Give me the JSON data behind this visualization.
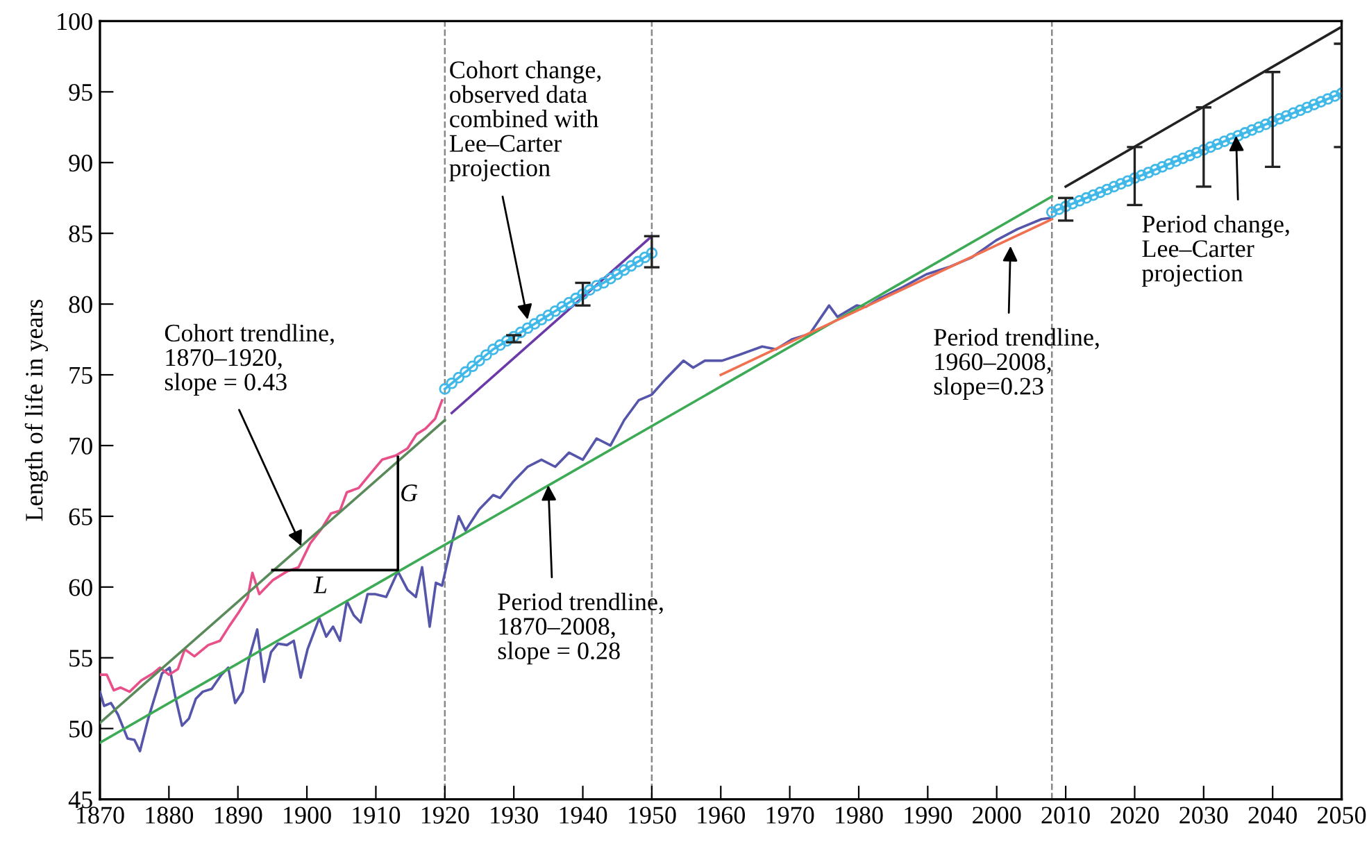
{
  "chart_data": {
    "type": "line",
    "ylabel": "Length of life in years",
    "xlim": [
      1870,
      2050
    ],
    "xticks": [
      1870,
      1880,
      1890,
      1900,
      1910,
      1920,
      1930,
      1940,
      1950,
      1960,
      1970,
      1980,
      1990,
      2000,
      2010,
      2020,
      2030,
      2040,
      2050
    ],
    "ylim": [
      45,
      100
    ],
    "yticks": [
      45,
      50,
      55,
      60,
      65,
      70,
      75,
      80,
      85,
      90,
      95,
      100
    ],
    "grid": false,
    "series": [
      {
        "color": "#5555aa",
        "x": [
          1870,
          1870.6,
          1871.6,
          1872.6,
          1874,
          1875,
          1875.8,
          1877,
          1879,
          1880.1,
          1880.9,
          1881.9,
          1882.9,
          1883.9,
          1884.9,
          1886.2,
          1887.6,
          1888.6,
          1889.6,
          1890.7,
          1891.7,
          1892.8,
          1893.8,
          1894.8,
          1895.8,
          1897.1,
          1898.1,
          1899.1,
          1900.1,
          1901.8,
          1902.8,
          1903.8,
          1904.8,
          1905.8,
          1906.8,
          1907.8,
          1908.8,
          1909.9,
          1911.5,
          1913.2,
          1914.6,
          1915.8,
          1916.7,
          1917.8,
          1918.7,
          1919.6,
          1921,
          1922,
          1923,
          1925,
          1927,
          1928,
          1930,
          1932,
          1934,
          1936,
          1938,
          1940,
          1942,
          1944,
          1946,
          1948.1,
          1950,
          1952,
          1954.6,
          1956,
          1957.7,
          1960.2,
          1962.6,
          1966,
          1968,
          1970.3,
          1972.9,
          1975.7,
          1976.9,
          1979.7,
          1981,
          1983,
          1986.4,
          1989.8,
          1993,
          1996.4,
          1999.9,
          2003,
          2006.5,
          2008
        ],
        "values": [
          52.6,
          51.6,
          51.8,
          51.0,
          49.3,
          49.2,
          48.4,
          50.7,
          53.9,
          54.3,
          52.3,
          50.2,
          50.7,
          52.1,
          52.6,
          52.8,
          53.8,
          54.3,
          51.8,
          52.6,
          55.1,
          57.0,
          53.3,
          55.4,
          56.0,
          55.9,
          56.2,
          53.6,
          55.6,
          57.8,
          56.5,
          57.2,
          56.2,
          59.0,
          58.0,
          57.5,
          59.5,
          59.5,
          59.3,
          61.1,
          59.8,
          59.3,
          61.4,
          57.2,
          60.3,
          60.1,
          63.1,
          65.0,
          64.0,
          65.5,
          66.5,
          66.3,
          67.5,
          68.5,
          69.0,
          68.5,
          69.5,
          69.0,
          70.5,
          70.0,
          71.8,
          73.2,
          73.6,
          74.7,
          76.0,
          75.5,
          76.0,
          76.0,
          76.4,
          77.0,
          76.8,
          77.5,
          77.9,
          79.9,
          79.1,
          79.9,
          79.8,
          80.4,
          81.2,
          82.1,
          82.6,
          83.3,
          84.5,
          85.3,
          86.0,
          86.1
        ]
      },
      {
        "color": "#e8508a",
        "x": [
          1870,
          1871,
          1872,
          1873,
          1874.3,
          1876,
          1877.7,
          1878.7,
          1880,
          1881.3,
          1882.3,
          1883.7,
          1885.7,
          1887.4,
          1888.7,
          1890.1,
          1891.4,
          1892.1,
          1893.1,
          1895.1,
          1897.1,
          1898.8,
          1900.5,
          1902.1,
          1903.5,
          1904.8,
          1905.8,
          1907.5,
          1909.2,
          1910.9,
          1912.9,
          1914.6,
          1915.9,
          1917.2,
          1918.6,
          1919.6
        ],
        "values": [
          53.8,
          53.8,
          52.7,
          52.9,
          52.6,
          53.4,
          53.9,
          54.3,
          53.8,
          54.2,
          55.6,
          55.1,
          55.9,
          56.2,
          57.2,
          58.2,
          59.2,
          61.0,
          59.5,
          60.5,
          61.1,
          61.4,
          63.1,
          64.1,
          65.2,
          65.4,
          66.7,
          67.0,
          68.0,
          69.0,
          69.3,
          69.8,
          70.8,
          71.2,
          71.9,
          73.2
        ]
      },
      {
        "color": "#5a8a5a",
        "x": [
          1870,
          1920
        ],
        "values": [
          50.4,
          71.8
        ]
      },
      {
        "color": "#3daa55",
        "x": [
          1870,
          2008
        ],
        "values": [
          49.0,
          87.6
        ]
      },
      {
        "color": "#f07050",
        "x": [
          1960,
          2008
        ],
        "values": [
          75.0,
          86.0
        ]
      },
      {
        "color": "#6a3aa8",
        "x": [
          1921,
          1950
        ],
        "values": [
          72.3,
          84.8
        ]
      },
      {
        "color": "#40b8e8",
        "marker": "circle",
        "x": [
          1920,
          1921,
          1922,
          1923,
          1924,
          1925,
          1926,
          1927,
          1928,
          1929,
          1930,
          1931,
          1932,
          1933,
          1934,
          1935,
          1936,
          1937,
          1938,
          1939,
          1940,
          1941,
          1942,
          1943,
          1944,
          1945,
          1946,
          1947,
          1948,
          1949,
          1950
        ],
        "values": [
          74.0,
          74.4,
          74.8,
          75.2,
          75.6,
          76.0,
          76.4,
          76.8,
          77.1,
          77.4,
          77.7,
          78.0,
          78.3,
          78.6,
          78.9,
          79.2,
          79.5,
          79.8,
          80.1,
          80.4,
          80.7,
          81.0,
          81.3,
          81.5,
          81.8,
          82.1,
          82.4,
          82.7,
          83.0,
          83.3,
          83.6
        ],
        "errors": [
          null,
          null,
          null,
          null,
          null,
          null,
          null,
          null,
          null,
          null,
          [
            77.3,
            77.8
          ],
          null,
          null,
          null,
          null,
          null,
          null,
          null,
          null,
          null,
          [
            79.9,
            81.5
          ],
          null,
          null,
          null,
          null,
          null,
          null,
          null,
          null,
          null,
          [
            82.6,
            84.8
          ]
        ]
      },
      {
        "color": "#40b8e8",
        "marker": "circle",
        "x": [
          2008,
          2009,
          2010,
          2011,
          2012,
          2013,
          2014,
          2015,
          2016,
          2017,
          2018,
          2019,
          2020,
          2021,
          2022,
          2023,
          2024,
          2025,
          2026,
          2027,
          2028,
          2029,
          2030,
          2031,
          2032,
          2033,
          2034,
          2035,
          2036,
          2037,
          2038,
          2039,
          2040,
          2041,
          2042,
          2043,
          2044,
          2045,
          2046,
          2047,
          2048,
          2049,
          2050
        ],
        "values": [
          86.5,
          86.7,
          86.9,
          87.1,
          87.3,
          87.5,
          87.7,
          87.9,
          88.1,
          88.3,
          88.5,
          88.7,
          88.9,
          89.1,
          89.3,
          89.5,
          89.7,
          89.9,
          90.1,
          90.3,
          90.5,
          90.7,
          90.9,
          91.1,
          91.3,
          91.5,
          91.7,
          91.9,
          92.1,
          92.3,
          92.5,
          92.7,
          92.9,
          93.1,
          93.3,
          93.5,
          93.7,
          93.9,
          94.1,
          94.3,
          94.5,
          94.7,
          94.9
        ],
        "errors": [
          null,
          null,
          [
            85.9,
            87.5
          ],
          null,
          null,
          null,
          null,
          null,
          null,
          null,
          null,
          null,
          [
            87.0,
            91.1
          ],
          null,
          null,
          null,
          null,
          null,
          null,
          null,
          null,
          null,
          [
            88.3,
            93.9
          ],
          null,
          null,
          null,
          null,
          null,
          null,
          null,
          null,
          null,
          [
            89.7,
            96.4
          ],
          null,
          null,
          null,
          null,
          null,
          null,
          null,
          null,
          null,
          [
            91.1,
            98.4
          ]
        ]
      },
      {
        "color": "#222222",
        "x": [
          2010,
          2050
        ],
        "values": [
          88.3,
          99.6
        ]
      },
      {
        "color": "#000000",
        "x": [
          1895,
          1913.2,
          1913.2
        ],
        "values": [
          61.2,
          61.2,
          69.2
        ]
      }
    ],
    "ref_lines": [
      {
        "axis": "x",
        "value": 1920,
        "color": "#888888",
        "line_style": "dashed"
      },
      {
        "axis": "x",
        "value": 1950,
        "color": "#888888",
        "line_style": "dashed"
      },
      {
        "axis": "x",
        "value": 2008,
        "color": "#888888",
        "line_style": "dashed"
      }
    ],
    "annotations": [
      {
        "text": "Cohort trendline,\n1870–1920,\nslope = 0.43",
        "x": 1899.2,
        "y": 62.9
      },
      {
        "text": "Cohort change,\nobserved data\ncombined with\nLee–Carter\nprojection",
        "x": 1932,
        "y": 78.9
      },
      {
        "text": "Period trendline,\n1870–2008,\nslope = 0.28",
        "x": 1935,
        "y": 67.2
      },
      {
        "text": "Period trendline,\n1960–2008,\nslope=0.23",
        "x": 2002,
        "y": 84.1
      },
      {
        "text": "Period change,\nLee–Carter\nprojection",
        "x": 2034.7,
        "y": 91.9
      },
      "G",
      "L"
    ]
  }
}
